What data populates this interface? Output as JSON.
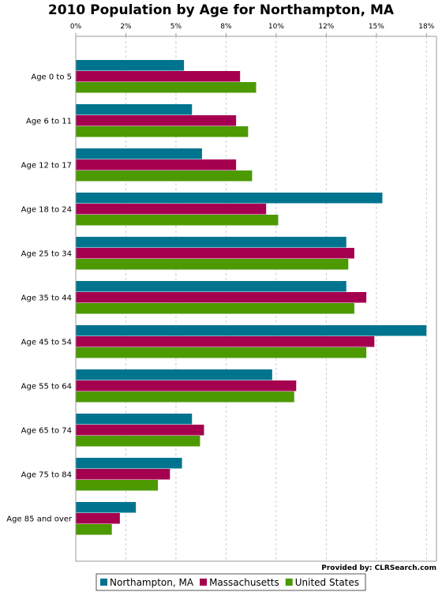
{
  "chart_data": {
    "type": "bar",
    "orientation": "horizontal",
    "title": "2010 Population by Age for Northampton, MA",
    "xlabel": "",
    "ylabel": "",
    "xlim": [
      0,
      18
    ],
    "x_ticks": [
      0,
      2.5,
      5,
      7.5,
      10,
      12.5,
      15,
      17.5
    ],
    "x_tick_labels": [
      "0%",
      "2%",
      "5%",
      "8%",
      "10%",
      "12%",
      "15%",
      "18%"
    ],
    "grid": true,
    "legend_position": "bottom",
    "categories": [
      "Age 0 to 5",
      "Age 6 to 11",
      "Age 12 to 17",
      "Age 18 to 24",
      "Age 25 to 34",
      "Age 35 to 44",
      "Age 45 to 54",
      "Age 55 to 64",
      "Age 65 to 74",
      "Age 75 to 84",
      "Age 85 and over"
    ],
    "series": [
      {
        "name": "Northampton, MA",
        "color": "#00748f",
        "values": [
          5.4,
          5.8,
          6.3,
          15.3,
          13.5,
          13.5,
          17.5,
          9.8,
          5.8,
          5.3,
          3.0
        ]
      },
      {
        "name": "Massachusetts",
        "color": "#a50050",
        "values": [
          8.2,
          8.0,
          8.0,
          9.5,
          13.9,
          14.5,
          14.9,
          11.0,
          6.4,
          4.7,
          2.2
        ]
      },
      {
        "name": "United States",
        "color": "#4c9900",
        "values": [
          9.0,
          8.6,
          8.8,
          10.1,
          13.6,
          13.9,
          14.5,
          10.9,
          6.2,
          4.1,
          1.8
        ]
      }
    ],
    "credit": "Provided by: CLRSearch.com"
  }
}
